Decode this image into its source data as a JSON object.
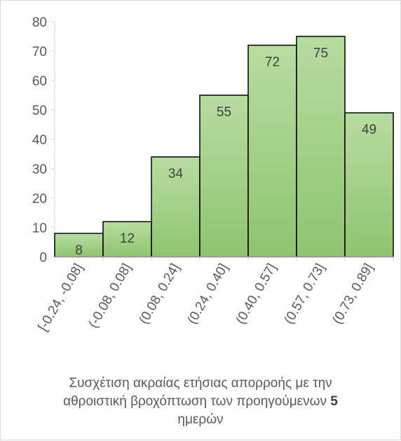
{
  "chart_data": {
    "type": "bar",
    "categories": [
      "[-0.24, -0.08]",
      "(-0.08, 0.08]",
      "(0.08, 0.24]",
      "(0.24, 0.40]",
      "(0.40, 0.57]",
      "(0.57, 0.73]",
      "(0.73, 0.89]"
    ],
    "values": [
      8,
      12,
      34,
      55,
      72,
      75,
      49
    ],
    "data_labels": [
      "8",
      "12",
      "34",
      "55",
      "72",
      "75",
      "49"
    ],
    "y_ticks": [
      "0",
      "10",
      "20",
      "30",
      "40",
      "50",
      "60",
      "70",
      "80"
    ],
    "ylim": [
      0,
      80
    ],
    "grid": false,
    "legend": "none",
    "bar_fill": "#a9d18e",
    "bar_stroke": "#000000",
    "xlabel_part1": "Συσχέτιση ακραίας ετήσιας απορροής με την αθροιστική βροχόπτωση των προηγούμενων",
    "xlabel_bold": "5",
    "xlabel_part2": "ημερών"
  }
}
